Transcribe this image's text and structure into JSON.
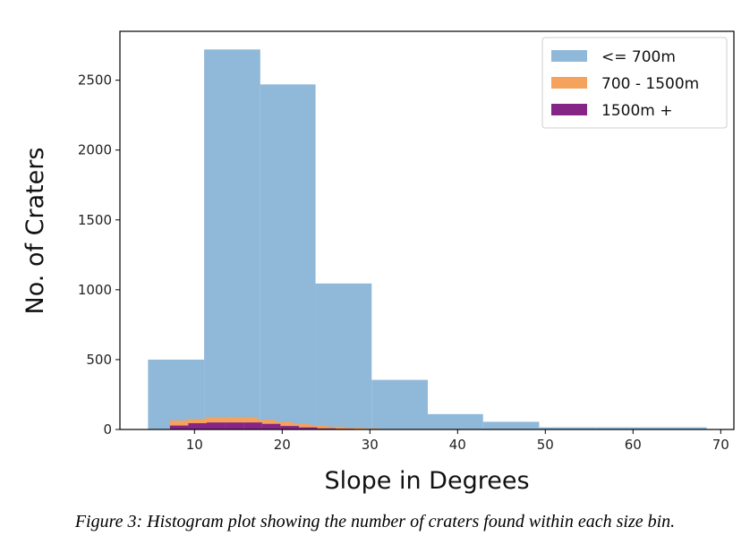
{
  "chart_data": {
    "type": "bar",
    "histogram": true,
    "xlabel": "Slope in Degrees",
    "ylabel": "No. of Craters",
    "xlim": [
      1.5,
      71.5
    ],
    "ylim": [
      0,
      2850
    ],
    "xticks": [
      10,
      20,
      30,
      40,
      50,
      60,
      70
    ],
    "yticks": [
      0,
      500,
      1000,
      1500,
      2000,
      2500
    ],
    "legend_position": "top-right",
    "grid": false,
    "series": [
      {
        "name": "<= 700m",
        "color": "#8fb8d9",
        "bin_edges": [
          4.7,
          11.1,
          17.5,
          23.8,
          30.2,
          36.6,
          42.9,
          49.3,
          55.7,
          62.0,
          68.4
        ],
        "counts": [
          500,
          2720,
          2470,
          1045,
          355,
          110,
          55,
          15,
          15,
          15
        ]
      },
      {
        "name": "700 - 1500m",
        "color": "#f5a25c",
        "bin_edges": [
          7.2,
          9.2,
          11.2,
          13.2,
          15.2,
          17.2,
          19.2,
          21.2,
          23.2,
          25.2,
          27.2,
          29.2,
          31.2
        ],
        "counts": [
          65,
          75,
          90,
          90,
          90,
          70,
          55,
          40,
          28,
          20,
          12,
          8
        ]
      },
      {
        "name": "1500m +",
        "color": "#852585",
        "bin_edges": [
          7.2,
          9.3,
          11.4,
          13.5,
          15.6,
          17.7,
          19.8,
          21.9,
          24.0,
          26.1,
          28.2,
          30.3
        ],
        "counts": [
          28,
          45,
          50,
          50,
          50,
          40,
          25,
          15,
          8,
          5,
          3
        ]
      }
    ]
  },
  "caption": "Figure 3: Histogram plot showing the number of craters found within each size bin."
}
